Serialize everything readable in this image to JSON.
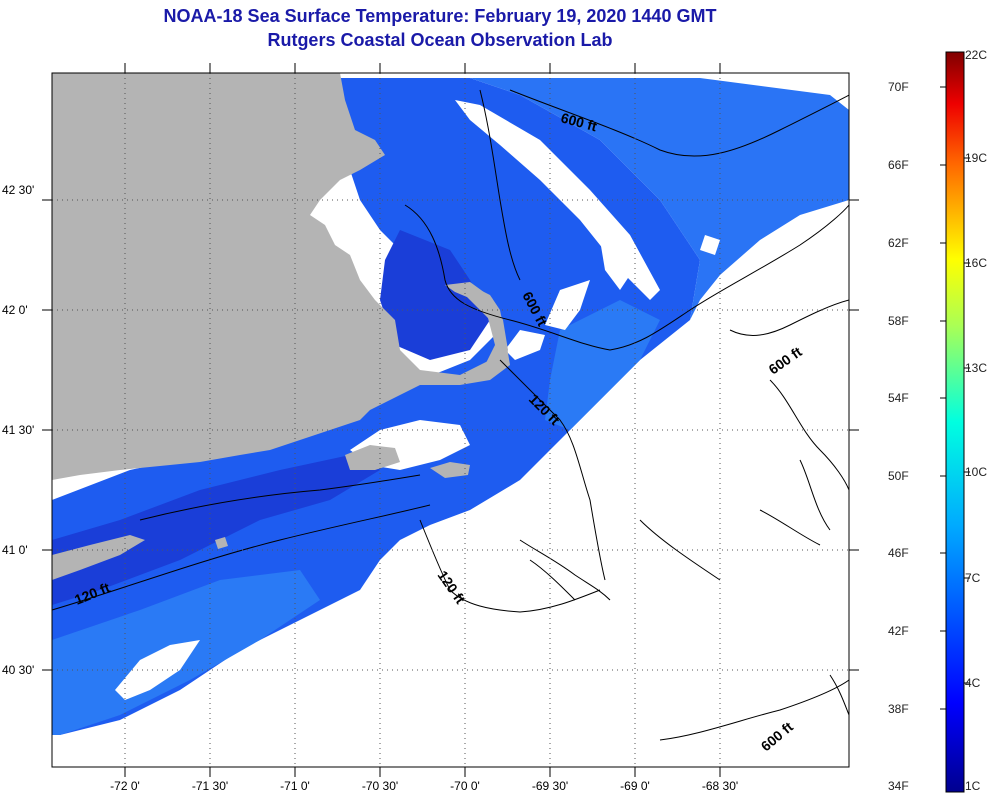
{
  "title": {
    "line1": "NOAA-18 Sea Surface Temperature:  February 19, 2020 1440 GMT",
    "line2": "Rutgers Coastal Ocean Observation Lab"
  },
  "colors": {
    "land": "#b4b4b4",
    "water_deep": "#1a3ed8",
    "water_mid": "#1e5cf0",
    "water_light": "#2a7af5",
    "cloud": "#ffffff",
    "contour": "#000000",
    "title": "#1a1aa8"
  },
  "axes": {
    "lon_labels": [
      "-72 0'",
      "-71 30'",
      "-71 0'",
      "-70 30'",
      "-70 0'",
      "-69 30'",
      "-69 0'",
      "-68 30'"
    ],
    "lat_labels": [
      "42 30'",
      "42 0'",
      "41 30'",
      "41 0'",
      "40 30'"
    ]
  },
  "contour_labels": {
    "c600_north": "600 ft",
    "c600_center": "600 ft",
    "c600_east": "600 ft",
    "c600_south": "600 ft",
    "c120_ma": "120 ft",
    "c120_nan": "120 ft",
    "c120_west": "120 ft"
  },
  "colorbar": {
    "fahrenheit": [
      "70F",
      "66F",
      "62F",
      "58F",
      "54F",
      "50F",
      "46F",
      "42F",
      "38F",
      "34F"
    ],
    "celsius": [
      "22C",
      "19C",
      "16C",
      "13C",
      "10C",
      "7C",
      "4C",
      "1C"
    ]
  }
}
